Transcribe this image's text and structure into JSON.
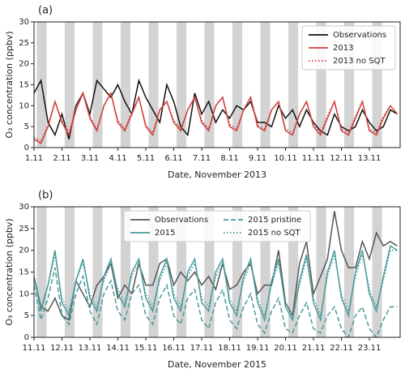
{
  "chart_data": [
    {
      "type": "line",
      "panel_label": "(a)",
      "xlabel": "Date, November 2013",
      "ylabel": "O₃ concentration (ppbv)",
      "xlim": [
        1,
        14.1
      ],
      "ylim": [
        0,
        30
      ],
      "yticks": [
        0,
        5,
        10,
        15,
        20,
        25,
        30
      ],
      "xticks": [
        {
          "value": 1,
          "label": "1.11"
        },
        {
          "value": 2,
          "label": "2.11"
        },
        {
          "value": 3,
          "label": "3.11"
        },
        {
          "value": 4,
          "label": "4.11"
        },
        {
          "value": 5,
          "label": "5.11"
        },
        {
          "value": 6,
          "label": "6.11"
        },
        {
          "value": 7,
          "label": "7.11"
        },
        {
          "value": 8,
          "label": "8.11"
        },
        {
          "value": 9,
          "label": "9.11"
        },
        {
          "value": 10,
          "label": "10.11"
        },
        {
          "value": 11,
          "label": "11.11"
        },
        {
          "value": 12,
          "label": "12.11"
        },
        {
          "value": 13,
          "label": "13.11"
        }
      ],
      "legend": "upper right",
      "legend_columns": 1,
      "x": [
        1,
        1.25,
        1.5,
        1.75,
        2,
        2.25,
        2.5,
        2.75,
        3,
        3.25,
        3.5,
        3.75,
        4,
        4.25,
        4.5,
        4.75,
        5,
        5.25,
        5.5,
        5.75,
        6,
        6.25,
        6.5,
        6.75,
        7,
        7.25,
        7.5,
        7.75,
        8,
        8.25,
        8.5,
        8.75,
        9,
        9.25,
        9.5,
        9.75,
        10,
        10.25,
        10.5,
        10.75,
        11,
        11.25,
        11.5,
        11.75,
        12,
        12.25,
        12.5,
        12.75,
        13,
        13.25,
        13.5,
        13.75,
        14
      ],
      "series": [
        {
          "name": "Observations",
          "color": "#111111",
          "linestyle": "solid",
          "values": [
            13,
            16,
            6,
            3,
            8,
            2,
            10,
            13,
            8,
            16,
            14,
            12,
            15,
            11,
            8,
            16,
            12,
            9,
            6,
            15,
            11,
            5,
            3,
            13,
            8,
            11,
            6,
            9,
            7,
            10,
            9,
            11,
            6,
            6,
            5,
            10,
            7,
            9,
            5,
            9,
            6,
            4,
            3,
            8,
            5,
            4,
            5,
            9,
            6,
            4,
            5,
            9,
            8
          ]
        },
        {
          "name": "2013",
          "color": "#d0413e",
          "linestyle": "solid",
          "values": [
            2,
            1,
            5,
            11,
            6,
            3,
            9,
            13,
            7,
            4,
            10,
            13,
            6,
            4,
            8,
            12,
            5,
            3,
            9,
            11,
            6,
            4,
            9,
            12,
            6,
            4,
            10,
            12,
            5,
            4,
            9,
            12,
            5,
            4,
            9,
            11,
            4,
            3,
            8,
            11,
            5,
            3,
            7,
            11,
            4,
            3,
            7,
            11,
            4,
            3,
            7,
            10,
            8
          ]
        },
        {
          "name": "2013 no SQT",
          "color": "#d0413e",
          "linestyle": "dotted",
          "values": [
            2.5,
            1.5,
            5.5,
            11,
            6.5,
            3.5,
            9.5,
            13,
            7.5,
            4.5,
            10,
            13,
            6.5,
            4.5,
            8.5,
            12,
            5.5,
            3.5,
            9,
            11,
            6.5,
            4.5,
            9,
            12,
            6.5,
            4.5,
            10,
            12,
            5.5,
            4.5,
            9,
            12,
            5.5,
            4.5,
            9,
            11,
            4.5,
            3.5,
            8,
            11,
            5.5,
            3.5,
            7.5,
            11,
            4.5,
            3.5,
            7.5,
            11,
            4.5,
            3.5,
            7.5,
            10,
            8
          ]
        }
      ]
    },
    {
      "type": "line",
      "panel_label": "(b)",
      "xlabel": "Date, November 2015",
      "ylabel": "O₃ concentration (ppbv)",
      "xlim": [
        11,
        24.1
      ],
      "ylim": [
        0,
        30
      ],
      "yticks": [
        0,
        5,
        10,
        15,
        20,
        25,
        30
      ],
      "xticks": [
        {
          "value": 11,
          "label": "11.11"
        },
        {
          "value": 12,
          "label": "12.11"
        },
        {
          "value": 13,
          "label": "13.11"
        },
        {
          "value": 14,
          "label": "14.11"
        },
        {
          "value": 15,
          "label": "15.11"
        },
        {
          "value": 16,
          "label": "16.11"
        },
        {
          "value": 17,
          "label": "17.11"
        },
        {
          "value": 18,
          "label": "18.11"
        },
        {
          "value": 19,
          "label": "19.11"
        },
        {
          "value": 20,
          "label": "20.11"
        },
        {
          "value": 21,
          "label": "21.11"
        },
        {
          "value": 22,
          "label": "22.11"
        },
        {
          "value": 23,
          "label": "23.11"
        }
      ],
      "legend": "upper center",
      "legend_columns": 2,
      "x": [
        11,
        11.25,
        11.5,
        11.75,
        12,
        12.25,
        12.5,
        12.75,
        13,
        13.25,
        13.5,
        13.75,
        14,
        14.25,
        14.5,
        14.75,
        15,
        15.25,
        15.5,
        15.75,
        16,
        16.25,
        16.5,
        16.75,
        17,
        17.25,
        17.5,
        17.75,
        18,
        18.25,
        18.5,
        18.75,
        19,
        19.25,
        19.5,
        19.75,
        20,
        20.25,
        20.5,
        20.75,
        21,
        21.25,
        21.5,
        21.75,
        22,
        22.25,
        22.5,
        22.75,
        23,
        23.25,
        23.5,
        23.75,
        24
      ],
      "series": [
        {
          "name": "Observations",
          "color": "#555555",
          "linestyle": "solid",
          "values": [
            14,
            7,
            6,
            9,
            5,
            4,
            13,
            10,
            7,
            12,
            14,
            17,
            9,
            12,
            10,
            17,
            12,
            12,
            17,
            18,
            12,
            15,
            13,
            15,
            12,
            14,
            11,
            17,
            11,
            12,
            15,
            17,
            10,
            12,
            12,
            20,
            8,
            5,
            17,
            22,
            10,
            14,
            18,
            29,
            20,
            16,
            16,
            22,
            18,
            24,
            21,
            22,
            21
          ]
        },
        {
          "name": "2015",
          "color": "#4a9a9a",
          "linestyle": "solid",
          "values": [
            14,
            6,
            12,
            20,
            8,
            5,
            13,
            18,
            9,
            6,
            14,
            18,
            10,
            7,
            15,
            18,
            9,
            6,
            14,
            18,
            9,
            6,
            15,
            18,
            8,
            6,
            15,
            18,
            8,
            5,
            14,
            18,
            8,
            4,
            13,
            18,
            7,
            4,
            13,
            19,
            8,
            4,
            15,
            20,
            9,
            5,
            15,
            20,
            10,
            6,
            14,
            21,
            20
          ]
        },
        {
          "name": "2015 pristine",
          "color": "#4a9a9a",
          "linestyle": "dashed",
          "values": [
            12,
            4,
            9,
            16,
            5,
            3,
            10,
            14,
            6,
            3,
            10,
            13,
            6,
            4,
            10,
            12,
            5,
            3,
            9,
            12,
            5,
            3,
            9,
            11,
            4,
            2,
            8,
            11,
            4,
            2,
            7,
            10,
            3,
            1,
            6,
            9,
            2,
            1,
            5,
            8,
            2,
            1,
            5,
            7,
            2,
            0,
            5,
            7,
            2,
            0,
            4,
            7,
            7
          ]
        },
        {
          "name": "2015 no SQT",
          "color": "#4a9a9a",
          "linestyle": "dotted",
          "values": [
            14,
            7,
            12,
            19,
            9,
            6,
            13,
            17,
            10,
            7,
            13,
            17,
            11,
            8,
            14,
            17,
            10,
            7,
            13,
            17,
            10,
            7,
            14,
            17,
            9,
            7,
            14,
            17,
            9,
            6,
            13,
            17,
            9,
            5,
            12,
            17,
            8,
            5,
            12,
            18,
            9,
            5,
            14,
            19,
            10,
            6,
            14,
            19,
            11,
            7,
            13,
            20,
            20
          ]
        }
      ]
    }
  ]
}
